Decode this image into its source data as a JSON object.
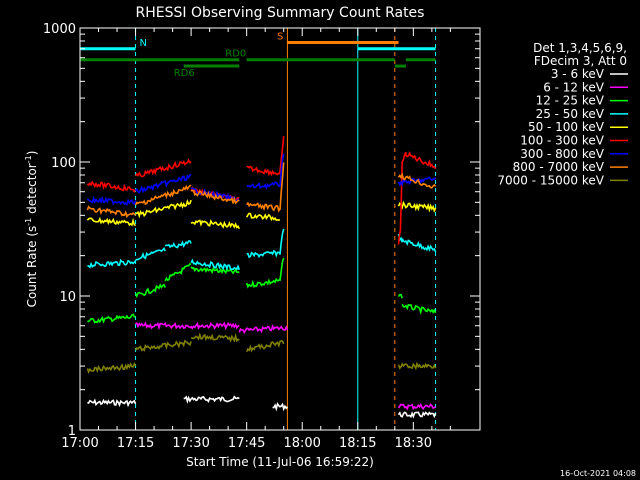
{
  "chart_data": {
    "type": "line",
    "title": "RHESSI Observing Summary Count Rates",
    "xlabel": "Start Time (11-Jul-06 16:59:22)",
    "ylabel": "Count Rate (s",
    "ylabel_sup1": "-1",
    "ylabel_mid": " detector",
    "ylabel_sup2": "-1",
    "ylabel_end": ")",
    "yscale": "log",
    "ylim": [
      1,
      1000
    ],
    "xlim_min": [
      0,
      108
    ],
    "x_ticks": [
      {
        "min": 0,
        "label": "17:00"
      },
      {
        "min": 15,
        "label": "17:15"
      },
      {
        "min": 30,
        "label": "17:30"
      },
      {
        "min": 45,
        "label": "17:45"
      },
      {
        "min": 60,
        "label": "18:00"
      },
      {
        "min": 75,
        "label": "18:15"
      },
      {
        "min": 90,
        "label": "18:30"
      }
    ],
    "y_ticks": [
      {
        "value": 1,
        "label": "1"
      },
      {
        "value": 10,
        "label": "10"
      },
      {
        "value": 100,
        "label": "100"
      },
      {
        "value": 1000,
        "label": "1000"
      }
    ],
    "legend_header": [
      "Det 1,3,4,5,6,9,",
      "FDecim 3, Att 0"
    ],
    "series": [
      {
        "name": "3 - 6 keV",
        "color": "#ffffff",
        "segments": [
          [
            [
              2,
              1.6
            ],
            [
              15,
              1.6
            ]
          ],
          [
            [
              28,
              1.7
            ],
            [
              43,
              1.7
            ]
          ],
          [
            [
              52,
              1.5
            ],
            [
              56,
              1.5
            ]
          ],
          [
            [
              86,
              1.3
            ],
            [
              96,
              1.3
            ]
          ]
        ]
      },
      {
        "name": "6 - 12 keV",
        "color": "#ff00ff",
        "segments": [
          [
            [
              15,
              6
            ],
            [
              30,
              6
            ]
          ],
          [
            [
              30,
              6
            ],
            [
              43,
              6
            ]
          ],
          [
            [
              43,
              5.5
            ],
            [
              56,
              5.8
            ]
          ],
          [
            [
              86,
              1.5
            ],
            [
              96,
              1.5
            ]
          ]
        ]
      },
      {
        "name": "12 - 25 keV",
        "color": "#00ff00",
        "segments": [
          [
            [
              2,
              6.5
            ],
            [
              15,
              7
            ]
          ],
          [
            [
              15,
              10
            ],
            [
              23,
              12
            ]
          ],
          [
            [
              23,
              13
            ],
            [
              30,
              17
            ]
          ],
          [
            [
              30,
              16
            ],
            [
              43,
              15
            ]
          ],
          [
            [
              45,
              12
            ],
            [
              54,
              13
            ],
            [
              55,
              20
            ]
          ],
          [
            [
              86,
              10
            ],
            [
              87,
              10
            ]
          ],
          [
            [
              87,
              8.5
            ],
            [
              96,
              7.5
            ]
          ]
        ]
      },
      {
        "name": "25 - 50 keV",
        "color": "#00ffff",
        "segments": [
          [
            [
              2,
              17
            ],
            [
              15,
              18
            ]
          ],
          [
            [
              15,
              19
            ],
            [
              23,
              22
            ]
          ],
          [
            [
              23,
              23
            ],
            [
              30,
              25
            ]
          ],
          [
            [
              30,
              18
            ],
            [
              43,
              16
            ]
          ],
          [
            [
              45,
              20
            ],
            [
              54,
              21
            ],
            [
              55,
              33
            ]
          ],
          [
            [
              86,
              28
            ],
            [
              87,
              25
            ]
          ],
          [
            [
              87,
              26
            ],
            [
              96,
              22
            ]
          ]
        ]
      },
      {
        "name": "50 - 100 keV",
        "color": "#ffff00",
        "segments": [
          [
            [
              2,
              37
            ],
            [
              15,
              35
            ]
          ],
          [
            [
              15,
              40
            ],
            [
              30,
              50
            ]
          ],
          [
            [
              30,
              36
            ],
            [
              43,
              33
            ]
          ],
          [
            [
              45,
              40
            ],
            [
              54,
              38
            ]
          ],
          [
            [
              86,
              48
            ],
            [
              96,
              45
            ]
          ]
        ]
      },
      {
        "name": "100 - 300 keV",
        "color": "#ff0000",
        "segments": [
          [
            [
              2,
              70
            ],
            [
              15,
              62
            ]
          ],
          [
            [
              15,
              78
            ],
            [
              30,
              102
            ]
          ],
          [
            [
              30,
              62
            ],
            [
              43,
              52
            ]
          ],
          [
            [
              45,
              90
            ],
            [
              54,
              82
            ],
            [
              55,
              150
            ]
          ],
          [
            [
              86,
              25
            ],
            [
              86.5,
              30
            ],
            [
              87,
              100
            ],
            [
              88,
              115
            ],
            [
              96,
              92
            ]
          ]
        ]
      },
      {
        "name": "300 - 800 keV",
        "color": "#0000ff",
        "segments": [
          [
            [
              2,
              52
            ],
            [
              15,
              50
            ]
          ],
          [
            [
              15,
              60
            ],
            [
              30,
              78
            ]
          ],
          [
            [
              30,
              62
            ],
            [
              43,
              52
            ]
          ],
          [
            [
              45,
              65
            ],
            [
              54,
              68
            ],
            [
              55,
              120
            ]
          ],
          [
            [
              86,
              70
            ],
            [
              96,
              75
            ]
          ]
        ]
      },
      {
        "name": "800 - 7000 keV",
        "color": "#ff8000",
        "segments": [
          [
            [
              2,
              45
            ],
            [
              15,
              40
            ]
          ],
          [
            [
              15,
              48
            ],
            [
              30,
              65
            ]
          ],
          [
            [
              30,
              60
            ],
            [
              43,
              50
            ]
          ],
          [
            [
              45,
              48
            ],
            [
              54,
              45
            ],
            [
              55,
              100
            ]
          ],
          [
            [
              86,
              80
            ],
            [
              96,
              64
            ]
          ]
        ]
      },
      {
        "name": "7000 - 15000 keV",
        "color": "#808000",
        "segments": [
          [
            [
              2,
              2.8
            ],
            [
              15,
              3
            ]
          ],
          [
            [
              15,
              4
            ],
            [
              30,
              4.5
            ]
          ],
          [
            [
              30,
              5
            ],
            [
              43,
              4.8
            ]
          ],
          [
            [
              45,
              4
            ],
            [
              55,
              4.5
            ]
          ],
          [
            [
              86,
              3
            ],
            [
              96,
              3
            ]
          ]
        ]
      }
    ],
    "flag_lines": [
      {
        "label": "N",
        "color": "#00ffff",
        "y_level": 700,
        "segments": [
          [
            [
              0,
              15
            ]
          ],
          [
            [
              75,
              96
            ]
          ]
        ]
      },
      {
        "label": "S",
        "color": "#ff8000",
        "y_level": 780,
        "segments": [
          [
            [
              56,
              86
            ]
          ]
        ]
      },
      {
        "label": "RD0",
        "color": "#008000",
        "y_level": 580,
        "segments": [
          [
            [
              0,
              43
            ]
          ],
          [
            [
              45,
              85
            ]
          ],
          [
            [
              88,
              96
            ]
          ]
        ]
      },
      {
        "label": "RD6",
        "color": "#008000",
        "y_level": 520,
        "segments": [
          [
            [
              28,
              43
            ]
          ],
          [
            [
              85,
              88
            ]
          ]
        ]
      }
    ],
    "vertical_lines": [
      {
        "min": 0,
        "color": "#00ffff",
        "style": "solid"
      },
      {
        "min": 15,
        "color": "#00ffff",
        "style": "dashed"
      },
      {
        "min": 56,
        "color": "#ff8000",
        "style": "solid"
      },
      {
        "min": 75,
        "color": "#00ffff",
        "style": "solid"
      },
      {
        "min": 85,
        "color": "#ff8000",
        "style": "dashed"
      },
      {
        "min": 96,
        "color": "#00ffff",
        "style": "dashed"
      }
    ],
    "footer_date": "16-Oct-2021 04:08"
  }
}
